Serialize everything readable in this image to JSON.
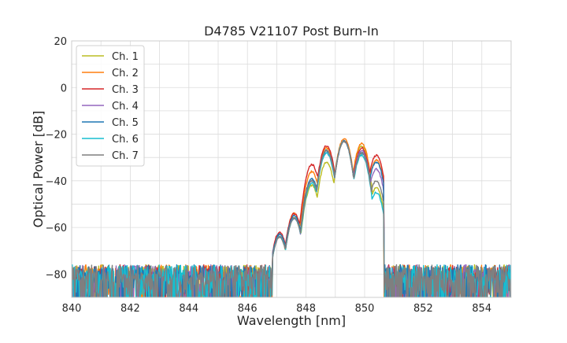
{
  "chart_data": {
    "type": "line",
    "title": "D4785 V21107 Post Burn-In",
    "xlabel": "Wavelength [nm]",
    "ylabel": "Optical Power [dB]",
    "xlim": [
      840,
      855
    ],
    "ylim": [
      -90,
      20
    ],
    "xticks": [
      840,
      842,
      844,
      846,
      848,
      850,
      852,
      854
    ],
    "yticks": [
      20,
      0,
      -20,
      -40,
      -60,
      -80
    ],
    "grid": true,
    "legend_position": "top-left",
    "noise_floor_db": -80,
    "series": [
      {
        "name": "Ch. 1",
        "color": "#bcbd22",
        "peaks": [
          [
            847.1,
            -64
          ],
          [
            847.6,
            -56
          ],
          [
            848.2,
            -42
          ],
          [
            848.7,
            -32
          ],
          [
            849.3,
            -23
          ],
          [
            849.9,
            -25
          ],
          [
            850.4,
            -43
          ]
        ]
      },
      {
        "name": "Ch. 2",
        "color": "#ff7f0e",
        "peaks": [
          [
            847.1,
            -63
          ],
          [
            847.6,
            -54
          ],
          [
            848.2,
            -36
          ],
          [
            848.7,
            -26
          ],
          [
            849.3,
            -22
          ],
          [
            849.9,
            -24
          ],
          [
            850.4,
            -31
          ]
        ]
      },
      {
        "name": "Ch. 3",
        "color": "#d62728",
        "peaks": [
          [
            847.1,
            -62
          ],
          [
            847.6,
            -54
          ],
          [
            848.2,
            -33
          ],
          [
            848.7,
            -25
          ],
          [
            849.3,
            -23
          ],
          [
            849.9,
            -26
          ],
          [
            850.4,
            -29
          ]
        ]
      },
      {
        "name": "Ch. 4",
        "color": "#9467bd",
        "peaks": [
          [
            847.1,
            -64
          ],
          [
            847.6,
            -56
          ],
          [
            848.2,
            -40
          ],
          [
            848.7,
            -28
          ],
          [
            849.3,
            -23
          ],
          [
            849.9,
            -27
          ],
          [
            850.4,
            -35
          ]
        ]
      },
      {
        "name": "Ch. 5",
        "color": "#1f77b4",
        "peaks": [
          [
            847.1,
            -63
          ],
          [
            847.6,
            -55
          ],
          [
            848.2,
            -39
          ],
          [
            848.7,
            -27
          ],
          [
            849.3,
            -23
          ],
          [
            849.9,
            -28
          ],
          [
            850.4,
            -32
          ]
        ]
      },
      {
        "name": "Ch. 6",
        "color": "#17becf",
        "peaks": [
          [
            847.1,
            -64
          ],
          [
            847.6,
            -56
          ],
          [
            848.2,
            -41
          ],
          [
            848.7,
            -28
          ],
          [
            849.3,
            -23
          ],
          [
            849.9,
            -29
          ],
          [
            850.4,
            -45
          ]
        ]
      },
      {
        "name": "Ch. 7",
        "color": "#7f7f7f",
        "peaks": [
          [
            847.1,
            -64
          ],
          [
            847.6,
            -56
          ],
          [
            848.2,
            -40
          ],
          [
            848.7,
            -27
          ],
          [
            849.3,
            -23
          ],
          [
            849.9,
            -28
          ],
          [
            850.4,
            -40
          ]
        ]
      }
    ]
  }
}
